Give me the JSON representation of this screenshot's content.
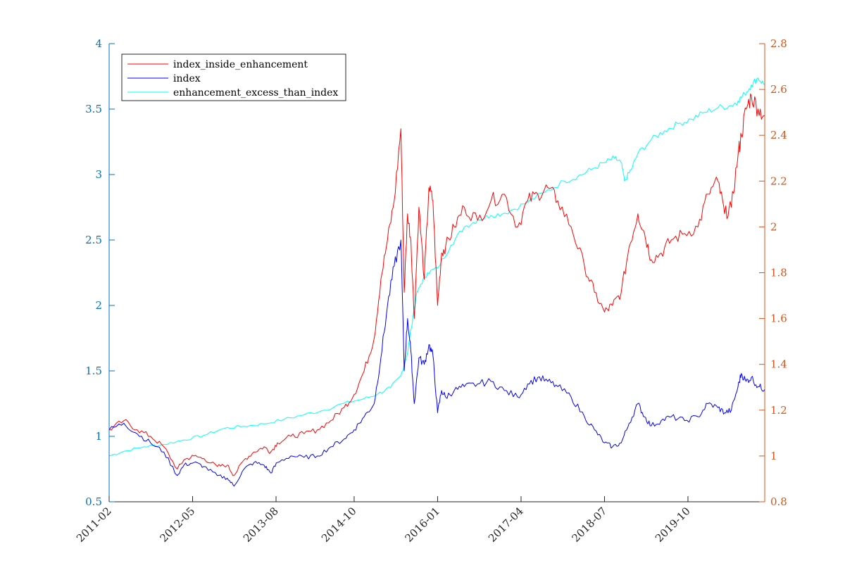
{
  "chart_data": {
    "type": "line",
    "x_ticks": [
      "2011-02",
      "2012-05",
      "2013-08",
      "2014-10",
      "2016-01",
      "2017-04",
      "2018-07",
      "2019-10"
    ],
    "x_tick_positions": [
      2011.08,
      2012.33,
      2013.58,
      2014.75,
      2016.0,
      2017.25,
      2018.5,
      2019.75
    ],
    "xlim": [
      2011.08,
      2020.9
    ],
    "y_left": {
      "lim": [
        0.5,
        4.0
      ],
      "ticks": [
        "0.5",
        "1",
        "1.5",
        "2",
        "2.5",
        "3",
        "3.5",
        "4"
      ],
      "color": "#0072bd"
    },
    "y_right": {
      "lim": [
        0.8,
        2.8
      ],
      "ticks": [
        "0.8",
        "1",
        "1.2",
        "1.4",
        "1.6",
        "1.8",
        "2",
        "2.2",
        "2.4",
        "2.6",
        "2.8"
      ],
      "color": "#d95319"
    },
    "legend_position": "top-left",
    "grid": false,
    "series": [
      {
        "name": "index_inside_enhancement",
        "axis": "left",
        "color": "#ff0000",
        "x": [
          2011.08,
          2011.3,
          2011.5,
          2011.7,
          2011.9,
          2012.1,
          2012.2,
          2012.35,
          2012.5,
          2012.7,
          2012.85,
          2012.95,
          2013.1,
          2013.25,
          2013.4,
          2013.5,
          2013.6,
          2013.8,
          2014.0,
          2014.2,
          2014.4,
          2014.6,
          2014.75,
          2014.9,
          2015.05,
          2015.15,
          2015.25,
          2015.35,
          2015.45,
          2015.5,
          2015.55,
          2015.6,
          2015.65,
          2015.72,
          2015.8,
          2015.87,
          2015.93,
          2016.0,
          2016.06,
          2016.12,
          2016.25,
          2016.4,
          2016.6,
          2016.8,
          2017.0,
          2017.2,
          2017.35,
          2017.5,
          2017.65,
          2017.8,
          2018.0,
          2018.2,
          2018.35,
          2018.5,
          2018.62,
          2018.75,
          2018.87,
          2019.0,
          2019.1,
          2019.2,
          2019.35,
          2019.5,
          2019.7,
          2019.9,
          2020.05,
          2020.2,
          2020.3,
          2020.4,
          2020.5,
          2020.55,
          2020.62,
          2020.7,
          2020.8,
          2020.9
        ],
        "y": [
          1.05,
          1.12,
          1.05,
          1.0,
          0.92,
          0.75,
          0.82,
          0.85,
          0.83,
          0.77,
          0.78,
          0.7,
          0.82,
          0.88,
          0.92,
          0.88,
          0.95,
          1.0,
          1.02,
          1.05,
          1.12,
          1.22,
          1.32,
          1.5,
          1.75,
          2.2,
          2.5,
          2.8,
          3.35,
          2.1,
          2.7,
          2.5,
          1.9,
          2.75,
          2.2,
          2.9,
          2.8,
          2.0,
          2.4,
          2.45,
          2.6,
          2.75,
          2.65,
          2.8,
          2.85,
          2.6,
          2.8,
          2.85,
          2.9,
          2.8,
          2.6,
          2.3,
          2.1,
          1.95,
          2.0,
          2.1,
          2.45,
          2.7,
          2.55,
          2.35,
          2.4,
          2.5,
          2.55,
          2.6,
          2.85,
          2.95,
          2.7,
          2.75,
          3.15,
          3.3,
          3.5,
          3.6,
          3.5,
          3.45
        ]
      },
      {
        "name": "index",
        "axis": "left",
        "color": "#0000ff",
        "x": [
          2011.08,
          2011.3,
          2011.5,
          2011.7,
          2011.9,
          2012.1,
          2012.2,
          2012.35,
          2012.5,
          2012.7,
          2012.85,
          2012.95,
          2013.1,
          2013.25,
          2013.4,
          2013.5,
          2013.6,
          2013.8,
          2014.0,
          2014.2,
          2014.4,
          2014.6,
          2014.75,
          2014.9,
          2015.05,
          2015.15,
          2015.25,
          2015.35,
          2015.45,
          2015.5,
          2015.55,
          2015.6,
          2015.65,
          2015.72,
          2015.8,
          2015.87,
          2015.93,
          2016.0,
          2016.06,
          2016.12,
          2016.25,
          2016.4,
          2016.6,
          2016.8,
          2017.0,
          2017.2,
          2017.35,
          2017.5,
          2017.65,
          2017.8,
          2018.0,
          2018.2,
          2018.35,
          2018.5,
          2018.62,
          2018.75,
          2018.87,
          2019.0,
          2019.1,
          2019.2,
          2019.35,
          2019.5,
          2019.7,
          2019.9,
          2020.05,
          2020.2,
          2020.3,
          2020.4,
          2020.5,
          2020.55,
          2020.62,
          2020.7,
          2020.8,
          2020.9
        ],
        "y": [
          1.05,
          1.1,
          1.02,
          0.95,
          0.88,
          0.7,
          0.78,
          0.8,
          0.77,
          0.7,
          0.68,
          0.62,
          0.75,
          0.8,
          0.78,
          0.72,
          0.8,
          0.85,
          0.84,
          0.85,
          0.92,
          0.98,
          1.05,
          1.15,
          1.25,
          1.6,
          2.0,
          2.3,
          2.5,
          1.5,
          1.9,
          1.65,
          1.25,
          1.6,
          1.55,
          1.7,
          1.62,
          1.18,
          1.35,
          1.3,
          1.35,
          1.38,
          1.4,
          1.42,
          1.35,
          1.3,
          1.4,
          1.45,
          1.42,
          1.38,
          1.3,
          1.15,
          1.05,
          0.95,
          0.92,
          0.95,
          1.1,
          1.25,
          1.15,
          1.08,
          1.12,
          1.15,
          1.12,
          1.15,
          1.25,
          1.22,
          1.18,
          1.2,
          1.38,
          1.48,
          1.42,
          1.45,
          1.38,
          1.36
        ]
      },
      {
        "name": "enhancement_excess_than_index",
        "axis": "right",
        "color": "#00ffff",
        "x": [
          2011.08,
          2011.3,
          2011.6,
          2011.9,
          2012.2,
          2012.5,
          2012.8,
          2013.1,
          2013.4,
          2013.7,
          2014.0,
          2014.3,
          2014.6,
          2014.9,
          2015.1,
          2015.3,
          2015.45,
          2015.55,
          2015.6,
          2015.68,
          2015.75,
          2015.85,
          2016.0,
          2016.2,
          2016.4,
          2016.6,
          2016.8,
          2017.0,
          2017.3,
          2017.6,
          2017.9,
          2018.1,
          2018.3,
          2018.5,
          2018.65,
          2018.75,
          2018.8,
          2018.9,
          2019.0,
          2019.2,
          2019.4,
          2019.6,
          2019.8,
          2020.0,
          2020.2,
          2020.4,
          2020.5,
          2020.6,
          2020.7,
          2020.8,
          2020.9
        ],
        "y": [
          1.0,
          1.02,
          1.04,
          1.05,
          1.07,
          1.09,
          1.12,
          1.13,
          1.14,
          1.16,
          1.18,
          1.2,
          1.23,
          1.25,
          1.27,
          1.3,
          1.35,
          1.45,
          1.55,
          1.7,
          1.75,
          1.8,
          1.82,
          1.92,
          2.0,
          2.03,
          2.05,
          2.06,
          2.1,
          2.15,
          2.2,
          2.22,
          2.25,
          2.28,
          2.3,
          2.28,
          2.2,
          2.25,
          2.32,
          2.38,
          2.42,
          2.45,
          2.47,
          2.5,
          2.52,
          2.53,
          2.55,
          2.58,
          2.62,
          2.65,
          2.62
        ]
      }
    ]
  }
}
